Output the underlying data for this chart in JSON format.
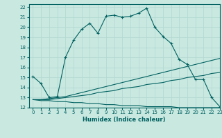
{
  "xlabel": "Humidex (Indice chaleur)",
  "ylabel": "",
  "xlim": [
    -0.5,
    23
  ],
  "ylim": [
    12,
    22.3
  ],
  "xticks": [
    0,
    1,
    2,
    3,
    4,
    5,
    6,
    7,
    8,
    9,
    10,
    11,
    12,
    13,
    14,
    15,
    16,
    17,
    18,
    19,
    20,
    21,
    22,
    23
  ],
  "yticks": [
    12,
    13,
    14,
    15,
    16,
    17,
    18,
    19,
    20,
    21,
    22
  ],
  "bg_color": "#c8e8e0",
  "grid_color": "#b0d8d0",
  "line_color": "#006060",
  "series": [
    {
      "x": [
        0,
        1,
        2,
        3,
        4,
        5,
        6,
        7,
        8,
        9,
        10,
        11,
        12,
        13,
        14,
        15,
        16,
        17,
        18,
        19,
        20,
        21,
        22,
        23
      ],
      "y": [
        15.1,
        14.4,
        13.0,
        13.1,
        17.0,
        18.7,
        19.8,
        20.4,
        19.4,
        21.1,
        21.2,
        21.0,
        21.1,
        21.4,
        21.9,
        20.0,
        19.1,
        18.4,
        16.8,
        16.3,
        14.8,
        14.8,
        13.0,
        12.1
      ],
      "marker": "+"
    },
    {
      "x": [
        0,
        1,
        2,
        3,
        4,
        5,
        6,
        7,
        8,
        9,
        10,
        11,
        12,
        13,
        14,
        15,
        16,
        17,
        18,
        19,
        20,
        21,
        22,
        23
      ],
      "y": [
        12.8,
        12.8,
        12.9,
        13.0,
        13.1,
        13.3,
        13.5,
        13.7,
        13.9,
        14.1,
        14.3,
        14.5,
        14.7,
        14.9,
        15.1,
        15.3,
        15.5,
        15.7,
        15.9,
        16.1,
        16.3,
        16.5,
        16.7,
        16.9
      ],
      "marker": null
    },
    {
      "x": [
        0,
        1,
        2,
        3,
        4,
        5,
        6,
        7,
        8,
        9,
        10,
        11,
        12,
        13,
        14,
        15,
        16,
        17,
        18,
        19,
        20,
        21,
        22,
        23
      ],
      "y": [
        12.8,
        12.8,
        12.8,
        12.9,
        13.0,
        13.1,
        13.2,
        13.3,
        13.5,
        13.6,
        13.7,
        13.9,
        14.0,
        14.1,
        14.3,
        14.4,
        14.5,
        14.7,
        14.8,
        15.0,
        15.1,
        15.2,
        15.4,
        15.5
      ],
      "marker": null
    },
    {
      "x": [
        0,
        1,
        2,
        3,
        4,
        5,
        6,
        7,
        8,
        9,
        10,
        11,
        12,
        13,
        14,
        15,
        16,
        17,
        18,
        19,
        20,
        21,
        22,
        23
      ],
      "y": [
        12.8,
        12.7,
        12.7,
        12.6,
        12.6,
        12.5,
        12.5,
        12.4,
        12.4,
        12.3,
        12.3,
        12.2,
        12.2,
        12.2,
        12.1,
        12.1,
        12.1,
        12.1,
        12.0,
        12.0,
        12.0,
        12.0,
        12.0,
        12.0
      ],
      "marker": null
    }
  ]
}
